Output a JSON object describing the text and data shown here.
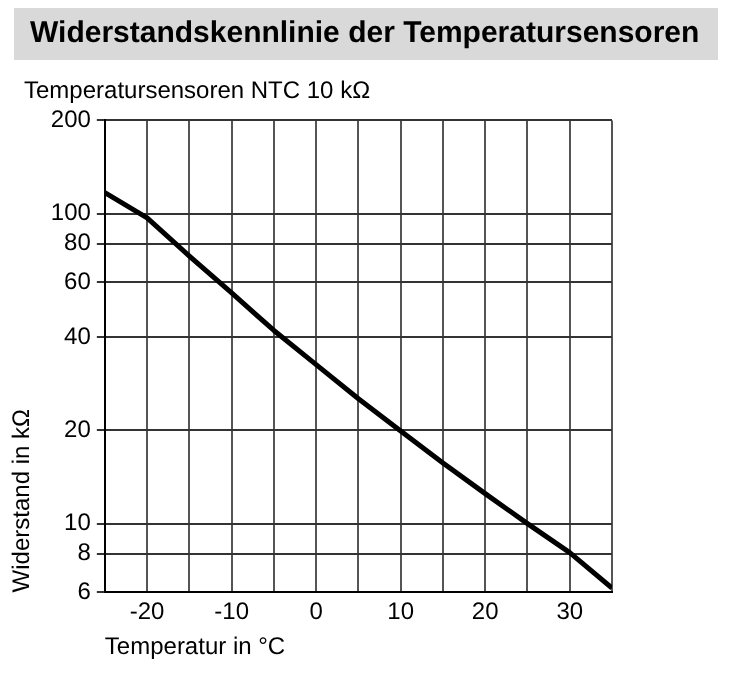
{
  "chart_data": {
    "type": "line",
    "title": "Widerstandskennlinie der Temperatursensoren",
    "subtitle": "Temperatursensoren NTC 10 kΩ",
    "xlabel": "Temperatur in °C",
    "ylabel": "Widerstand in kΩ",
    "x": [
      -25,
      -20,
      -15,
      -10,
      -5,
      0,
      5,
      10,
      15,
      20,
      25,
      30,
      35
    ],
    "series": [
      {
        "color": "#000000",
        "values": [
          117,
          97,
          73,
          55.5,
          42,
          32.6,
          25.3,
          19.9,
          15.7,
          12.5,
          10,
          8.06,
          6.2
        ]
      }
    ],
    "xlim": [
      -25,
      35
    ],
    "xticks": [
      {
        "value": -25,
        "label": null
      },
      -20,
      {
        "value": -15,
        "label": null
      },
      -10,
      {
        "value": -5,
        "label": null
      },
      0,
      {
        "value": 5,
        "label": null
      },
      10,
      {
        "value": 15,
        "label": null
      },
      20,
      {
        "value": 25,
        "label": null
      },
      30,
      {
        "value": 35,
        "label": null
      }
    ],
    "ylim": [
      6,
      200
    ],
    "yticks": [
      6,
      8,
      10,
      20,
      40,
      60,
      80,
      100,
      200
    ],
    "log": true,
    "grid": true,
    "legend": false,
    "marker": "none",
    "line_style": "solid"
  }
}
